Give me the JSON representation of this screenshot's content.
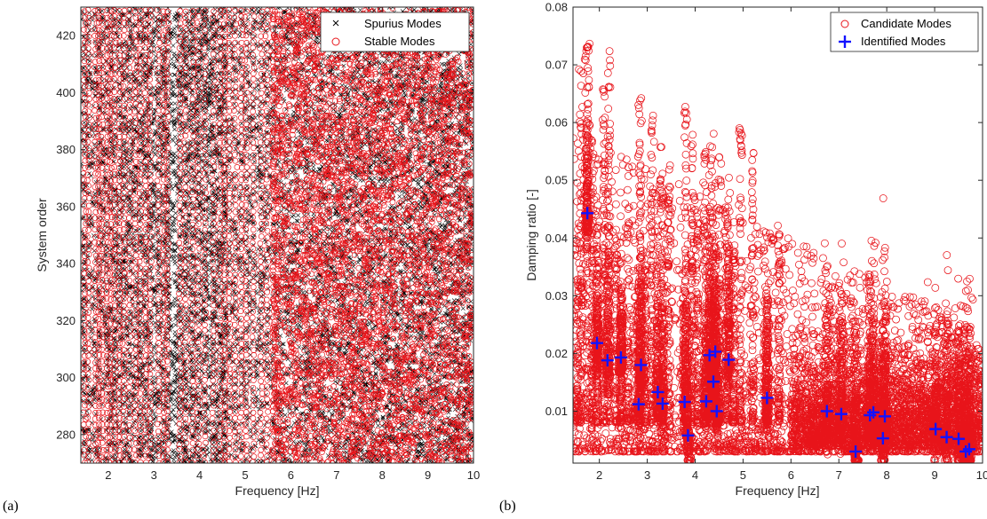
{
  "panel_labels": [
    "(a)",
    "(b)"
  ],
  "colors": {
    "stable": "#e8141a",
    "spurious": "#000000",
    "identified": "#1212ff",
    "axis": "#262626"
  },
  "chart_data": [
    {
      "type": "scatter",
      "xlabel": "Frequency [Hz]",
      "ylabel": "System order",
      "xlim": [
        1.4,
        10
      ],
      "ylim": [
        270,
        430
      ],
      "xticks": [
        2,
        3,
        4,
        5,
        6,
        7,
        8,
        9,
        10
      ],
      "yticks": [
        280,
        300,
        320,
        340,
        360,
        380,
        400,
        420
      ],
      "grid": false,
      "legend_placement": "top-right",
      "series": [
        {
          "name": "Spurius Modes",
          "marker": "x"
        },
        {
          "name": "Stable Modes",
          "marker": "o"
        }
      ],
      "stable_frequencies": [
        1.48,
        1.57,
        1.72,
        1.8,
        1.87,
        1.98,
        2.05,
        2.14,
        2.25,
        2.34,
        2.47,
        2.6,
        2.7,
        2.82,
        2.92,
        3.1,
        3.22,
        3.3,
        3.57,
        3.7,
        3.85,
        3.97,
        4.12,
        4.3,
        4.45,
        4.55,
        4.65,
        4.78,
        4.92,
        5.02,
        5.18,
        5.35,
        5.48,
        5.62
      ]
    },
    {
      "type": "scatter",
      "xlabel": "Frequency [Hz]",
      "ylabel": "Damping ratio [-]",
      "xlim": [
        1.45,
        10
      ],
      "ylim": [
        0.001,
        0.08
      ],
      "xticks": [
        2,
        3,
        4,
        5,
        6,
        7,
        8,
        9,
        10
      ],
      "yticks": [
        0.01,
        0.02,
        0.03,
        0.04,
        0.05,
        0.06,
        0.07,
        0.08
      ],
      "grid": false,
      "legend_placement": "top-right",
      "series": [
        {
          "name": "Candidate Modes",
          "marker": "o"
        },
        {
          "name": "Identified Modes",
          "marker": "+",
          "points": [
            [
              1.75,
              0.0443
            ],
            [
              1.95,
              0.0218
            ],
            [
              2.17,
              0.0188
            ],
            [
              2.45,
              0.0193
            ],
            [
              2.82,
              0.0112
            ],
            [
              2.87,
              0.018
            ],
            [
              3.22,
              0.0133
            ],
            [
              3.32,
              0.0113
            ],
            [
              3.78,
              0.0116
            ],
            [
              3.85,
              0.0058
            ],
            [
              4.23,
              0.0117
            ],
            [
              4.3,
              0.0197
            ],
            [
              4.38,
              0.0151
            ],
            [
              4.42,
              0.0203
            ],
            [
              4.45,
              0.01
            ],
            [
              4.7,
              0.0189
            ],
            [
              5.5,
              0.0123
            ],
            [
              6.75,
              0.01
            ],
            [
              7.05,
              0.0095
            ],
            [
              7.35,
              0.003
            ],
            [
              7.65,
              0.0093
            ],
            [
              7.72,
              0.0098
            ],
            [
              7.92,
              0.0053
            ],
            [
              7.96,
              0.0091
            ],
            [
              9.02,
              0.0069
            ],
            [
              9.25,
              0.0055
            ],
            [
              9.5,
              0.0052
            ],
            [
              9.65,
              0.003
            ],
            [
              9.72,
              0.0034
            ]
          ]
        }
      ]
    }
  ]
}
